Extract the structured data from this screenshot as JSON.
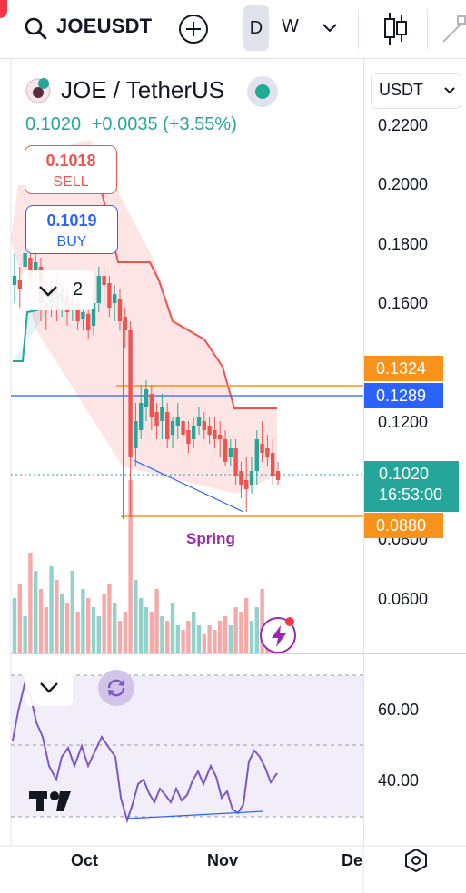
{
  "toolbar": {
    "symbol": "JOEUSDT",
    "timeframe_d": "D",
    "timeframe_w": "W"
  },
  "legend": {
    "title": "JOE / TetherUS",
    "price": "0.1020",
    "change": "+0.0035 (+3.55%)"
  },
  "trade": {
    "sell_price": "0.1018",
    "sell_label": "SELL",
    "buy_price": "0.1019",
    "buy_label": "BUY"
  },
  "indicators_count": "2",
  "currency_select": "USDT",
  "price_axis": {
    "ticks": [
      "0.2200",
      "0.2000",
      "0.1800",
      "0.1600",
      "0.1200",
      "0.0800",
      "0.0600"
    ],
    "labels": {
      "orange_top": "0.1324",
      "blue": "0.1289",
      "current": "0.1020",
      "countdown": "16:53:00",
      "orange_bottom": "0.0880"
    }
  },
  "rsi_axis": {
    "ticks": [
      "60.00",
      "40.00"
    ]
  },
  "annotation": "Spring",
  "time_axis": [
    "Oct",
    "Nov",
    "De"
  ],
  "colors": {
    "up": "#26a69a",
    "down": "#ef5350",
    "orange": "#f7931a",
    "blue": "#2962ff",
    "rsi": "#7e57c2",
    "purple_text": "#9c27b0"
  }
}
